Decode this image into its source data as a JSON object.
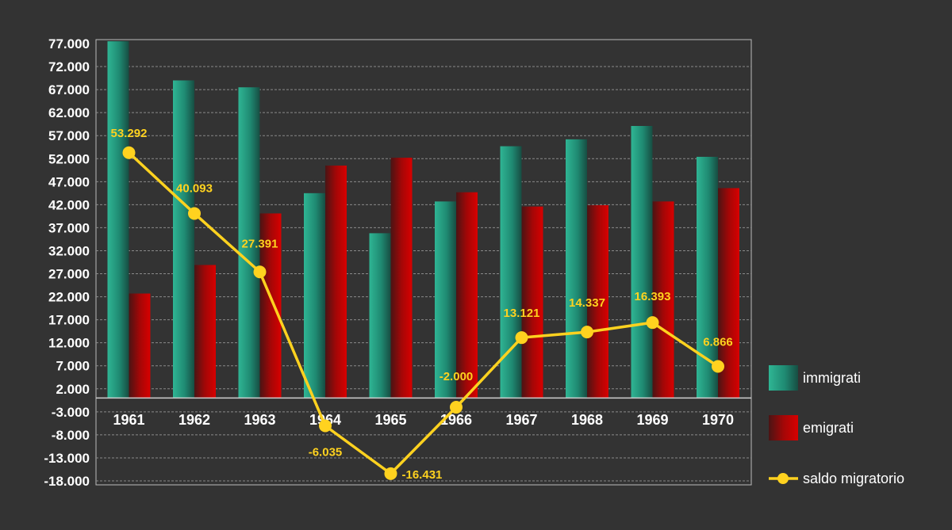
{
  "chart_data": {
    "type": "bar",
    "categories": [
      "1961",
      "1962",
      "1963",
      "1964",
      "1965",
      "1966",
      "1967",
      "1968",
      "1969",
      "1970"
    ],
    "series": [
      {
        "name": "immigrati",
        "kind": "bar",
        "color": "#2aa88c",
        "values": [
          77500,
          69000,
          67500,
          44500,
          35800,
          42700,
          54700,
          56200,
          59100,
          52400
        ]
      },
      {
        "name": "emigrati",
        "kind": "bar",
        "color": "#c00000",
        "values": [
          22700,
          28900,
          40100,
          50500,
          52200,
          44700,
          41600,
          41900,
          42700,
          45600
        ]
      },
      {
        "name": "saldo migratorio",
        "kind": "line",
        "color": "#ffd21f",
        "values": [
          53292,
          40093,
          27391,
          -6035,
          -16431,
          -2000,
          13121,
          14337,
          16393,
          6866
        ],
        "labels": [
          "53.292",
          "40.093",
          "27.391",
          "-6.035",
          "-16.431",
          "-2.000",
          "13.121",
          "14.337",
          "16.393",
          "6.866"
        ]
      }
    ],
    "y_ticks": [
      "77.000",
      "72.000",
      "67.000",
      "62.000",
      "57.000",
      "52.000",
      "47.000",
      "42.000",
      "37.000",
      "32.000",
      "27.000",
      "22.000",
      "17.000",
      "12.000",
      "7.000",
      "2.000",
      "-3.000",
      "-8.000",
      "-13.000",
      "-18.000"
    ],
    "y_tick_values": [
      77000,
      72000,
      67000,
      62000,
      57000,
      52000,
      47000,
      42000,
      37000,
      32000,
      27000,
      22000,
      17000,
      12000,
      7000,
      2000,
      -3000,
      -8000,
      -13000,
      -18000
    ],
    "ylim": [
      -18000,
      77000
    ],
    "title": "",
    "xlabel": "",
    "ylabel": "",
    "grid": true,
    "legend": {
      "placement": "right",
      "items": [
        {
          "label": "immigrati",
          "kind": "bar",
          "color": "#2aa88c"
        },
        {
          "label": "emigrati",
          "kind": "bar",
          "color": "#c00000"
        },
        {
          "label": "saldo migratorio",
          "kind": "line",
          "color": "#ffd21f"
        }
      ]
    },
    "colors": {
      "background": "#333333",
      "plot_border": "#bbbbbb",
      "grid": "#888888",
      "text": "#ffffff"
    }
  }
}
